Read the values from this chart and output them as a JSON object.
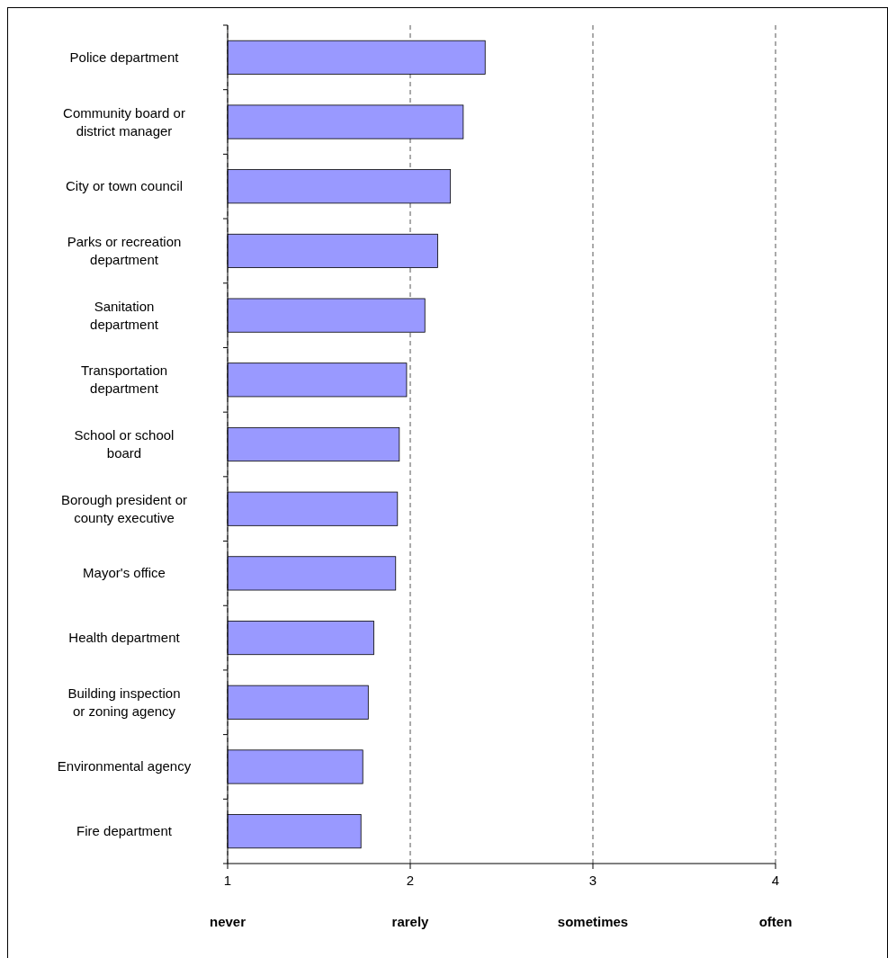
{
  "chart_data": {
    "type": "bar",
    "orientation": "horizontal",
    "categories": [
      "Police department",
      "Community board or district manager",
      "City or town council",
      "Parks or recreation department",
      "Sanitation department",
      "Transportation department",
      "School or school board",
      "Borough president or county executive",
      "Mayor's office",
      "Health department",
      "Building inspection or zoning agency",
      "Environmental agency",
      "Fire department"
    ],
    "values": [
      2.41,
      2.29,
      2.22,
      2.15,
      2.08,
      1.98,
      1.94,
      1.93,
      1.92,
      1.8,
      1.77,
      1.74,
      1.73
    ],
    "color": "#9999ff",
    "xlim": [
      1,
      4
    ],
    "xticks": [
      1,
      2,
      3,
      4
    ],
    "grid": "x",
    "annotations": [
      "never",
      "rarely",
      "sometimes",
      "often"
    ]
  }
}
